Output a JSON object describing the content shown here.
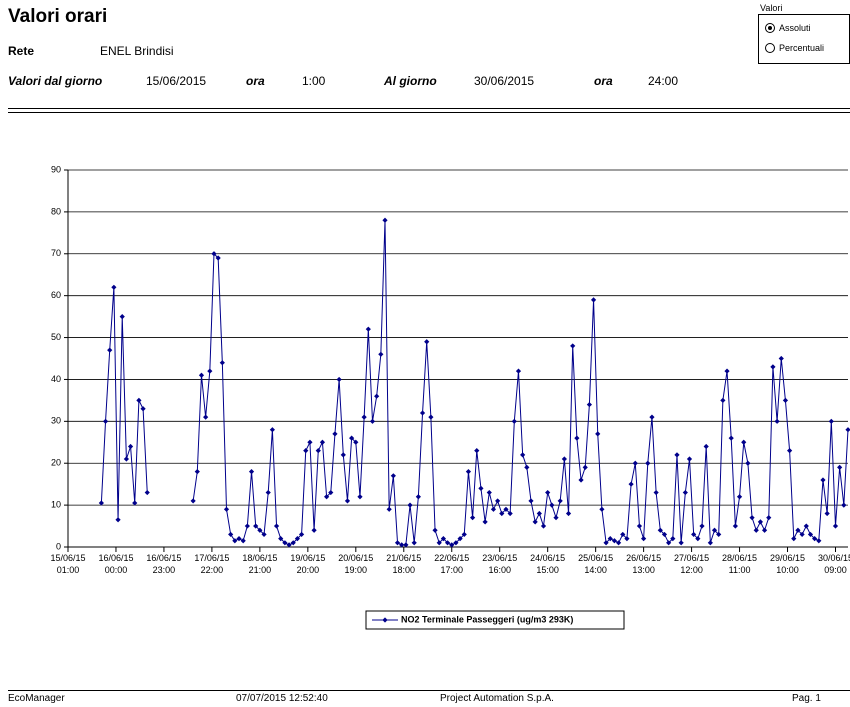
{
  "header": {
    "title": "Valori orari",
    "network_label": "Rete",
    "network": "ENEL Brindisi",
    "from_label": "Valori dal giorno",
    "from_date": "15/06/2015",
    "from_hour_label": "ora",
    "from_hour": "1:00",
    "to_label": "Al giorno",
    "to_date": "30/06/2015",
    "to_hour_label": "ora",
    "to_hour": "24:00"
  },
  "options": {
    "label": "Valori",
    "items": [
      "Assoluti",
      "Percentuali"
    ],
    "selected": 0
  },
  "chart_data": {
    "type": "line",
    "grid": true,
    "marker": "diamond",
    "xlim": [
      0,
      374
    ],
    "ylim": [
      0,
      90
    ],
    "yticks": [
      0,
      10,
      20,
      30,
      40,
      50,
      60,
      70,
      80,
      90
    ],
    "xticks": [
      {
        "value": 0,
        "label": "15/06/15 01:00"
      },
      {
        "value": 23,
        "label": "16/06/15 00:00"
      },
      {
        "value": 46,
        "label": "16/06/15 23:00"
      },
      {
        "value": 69,
        "label": "17/06/15 22:00"
      },
      {
        "value": 92,
        "label": "18/06/15 21:00"
      },
      {
        "value": 115,
        "label": "19/06/15 20:00"
      },
      {
        "value": 138,
        "label": "20/06/15 19:00"
      },
      {
        "value": 161,
        "label": "21/06/15 18:00"
      },
      {
        "value": 184,
        "label": "22/06/15 17:00"
      },
      {
        "value": 207,
        "label": "23/06/15 16:00"
      },
      {
        "value": 230,
        "label": "24/06/15 15:00"
      },
      {
        "value": 253,
        "label": "25/06/15 14:00"
      },
      {
        "value": 276,
        "label": "26/06/15 13:00"
      },
      {
        "value": 299,
        "label": "27/06/15 12:00"
      },
      {
        "value": 322,
        "label": "28/06/15 11:00"
      },
      {
        "value": 345,
        "label": "29/06/15 10:00"
      },
      {
        "value": 368,
        "label": "30/06/15 09:00"
      }
    ],
    "x": [
      0,
      2,
      4,
      6,
      8,
      10,
      12,
      14,
      16,
      18,
      20,
      22,
      24,
      26,
      28,
      30,
      32,
      34,
      36,
      38,
      40,
      42,
      44,
      46,
      48,
      50,
      52,
      54,
      56,
      58,
      60,
      62,
      64,
      66,
      68,
      70,
      72,
      74,
      76,
      78,
      80,
      82,
      84,
      86,
      88,
      90,
      92,
      94,
      96,
      98,
      100,
      102,
      104,
      106,
      108,
      110,
      112,
      114,
      116,
      118,
      120,
      122,
      124,
      126,
      128,
      130,
      132,
      134,
      136,
      138,
      140,
      142,
      144,
      146,
      148,
      150,
      152,
      154,
      156,
      158,
      160,
      162,
      164,
      166,
      168,
      170,
      172,
      174,
      176,
      178,
      180,
      182,
      184,
      186,
      188,
      190,
      192,
      194,
      196,
      198,
      200,
      202,
      204,
      206,
      208,
      210,
      212,
      214,
      216,
      218,
      220,
      222,
      224,
      226,
      228,
      230,
      232,
      234,
      236,
      238,
      240,
      242,
      244,
      246,
      248,
      250,
      252,
      254,
      256,
      258,
      260,
      262,
      264,
      266,
      268,
      270,
      272,
      274,
      276,
      278,
      280,
      282,
      284,
      286,
      288,
      290,
      292,
      294,
      296,
      298,
      300,
      302,
      304,
      306,
      308,
      310,
      312,
      314,
      316,
      318,
      320,
      322,
      324,
      326,
      328,
      330,
      332,
      334,
      336,
      338,
      340,
      342,
      344,
      346,
      348,
      350,
      352,
      354,
      356,
      358,
      360,
      362,
      364,
      366,
      368,
      370,
      372,
      374
    ],
    "series": [
      {
        "name": "NO2 Terminale Passeggeri (ug/m3 293K)",
        "color": "#00008b",
        "values": [
          null,
          null,
          null,
          null,
          null,
          null,
          null,
          null,
          10.5,
          30,
          47,
          62,
          6.5,
          55,
          21,
          24,
          10.5,
          35,
          33,
          13,
          null,
          null,
          null,
          null,
          null,
          null,
          null,
          null,
          null,
          null,
          11,
          18,
          41,
          31,
          42,
          70,
          69,
          44,
          9,
          3,
          1.5,
          2,
          1.5,
          5,
          18,
          5,
          4,
          3,
          13,
          28,
          5,
          2,
          1,
          0.5,
          1,
          2,
          3,
          23,
          25,
          4,
          23,
          25,
          12,
          13,
          27,
          40,
          22,
          11,
          26,
          25,
          12,
          31,
          52,
          30,
          36,
          46,
          78,
          9,
          17,
          1,
          0.5,
          0.5,
          10,
          1,
          12,
          32,
          49,
          31,
          4,
          1,
          2,
          1,
          0.5,
          1,
          2,
          3,
          18,
          7,
          23,
          14,
          6,
          13,
          9,
          11,
          8,
          9,
          8,
          30,
          42,
          22,
          19,
          11,
          6,
          8,
          5,
          13,
          10,
          7,
          11,
          21,
          8,
          48,
          26,
          16,
          19,
          34,
          59,
          27,
          9,
          1,
          2,
          1.5,
          1,
          3,
          2,
          15,
          20,
          5,
          2,
          20,
          31,
          13,
          4,
          3,
          1,
          2,
          22,
          1,
          13,
          21,
          3,
          2,
          5,
          24,
          1,
          4,
          3,
          35,
          42,
          26,
          5,
          12,
          25,
          20,
          7,
          4,
          6,
          4,
          7,
          43,
          30,
          45,
          35,
          23,
          2,
          4,
          3,
          5,
          3,
          2,
          1.5,
          16,
          8,
          30,
          5,
          19,
          10,
          28
        ]
      }
    ]
  },
  "footer": {
    "app": "EcoManager",
    "timestamp": "07/07/2015 12:52:40",
    "company": "Project Automation S.p.A.",
    "page": "Pag. 1"
  }
}
